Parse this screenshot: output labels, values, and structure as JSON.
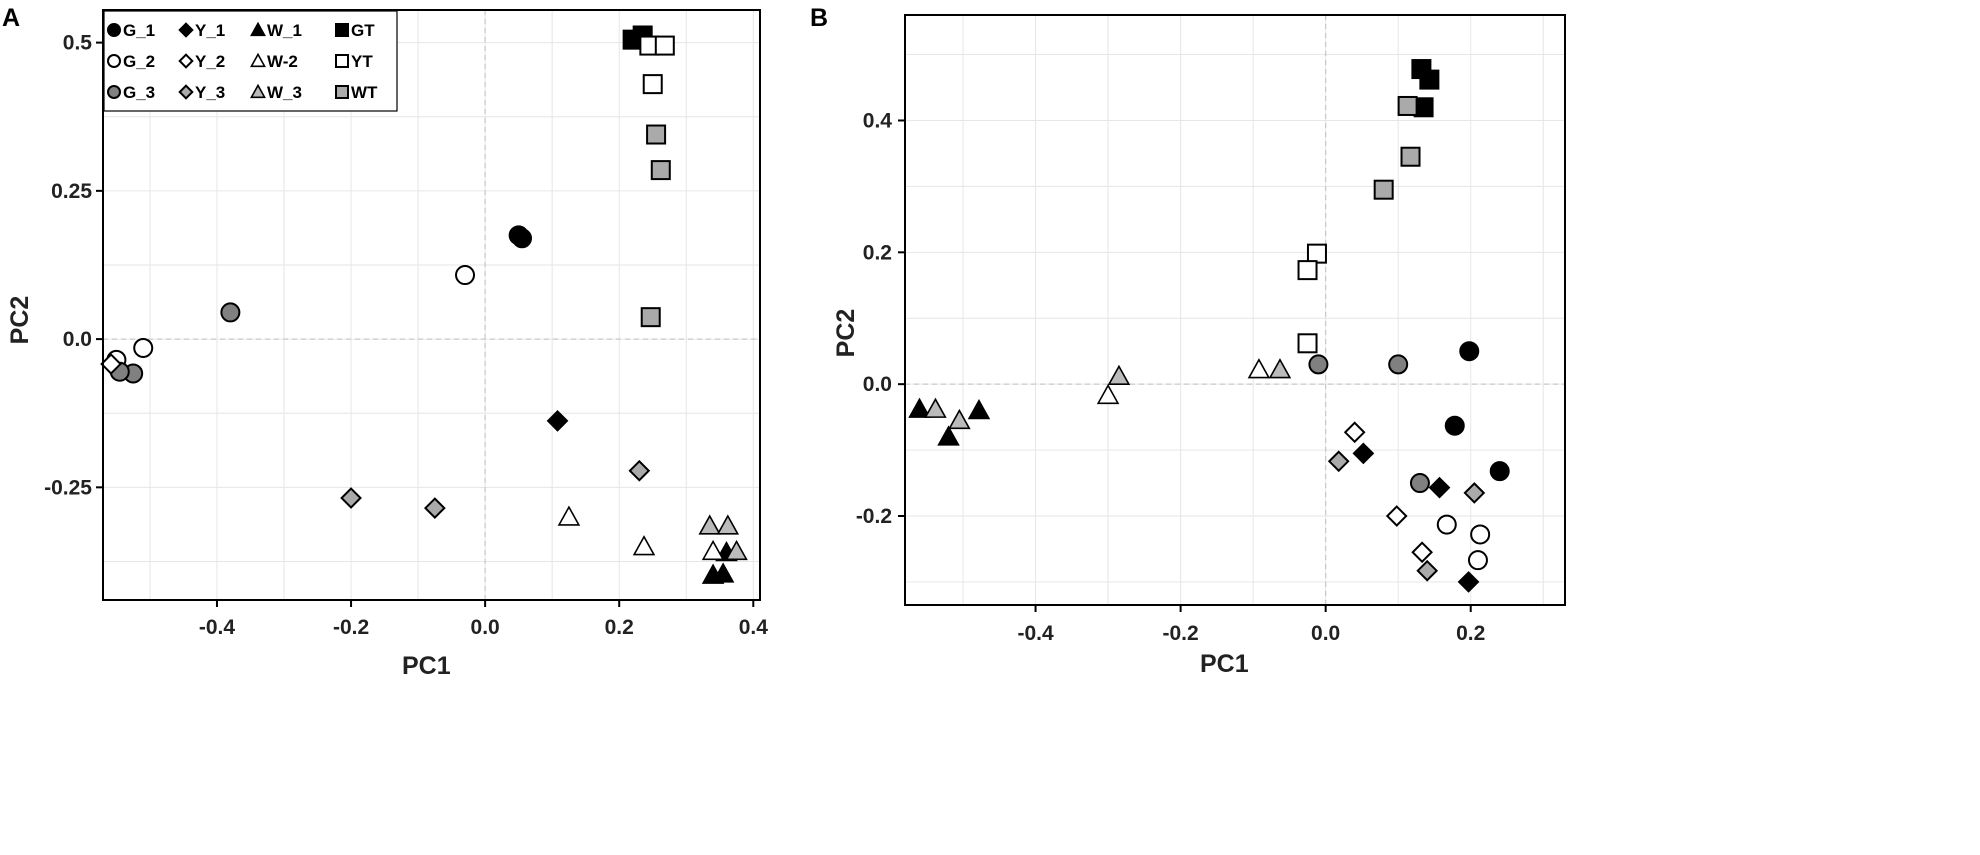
{
  "panels": [
    {
      "letter": "A",
      "ylabel_color": "#b5451b"
    },
    {
      "letter": "B",
      "ylabel_color": "#222222"
    }
  ],
  "legend": {
    "items": [
      {
        "label": "G_1",
        "group": "G_1"
      },
      {
        "label": "Y_1",
        "group": "Y_1"
      },
      {
        "label": "W_1",
        "group": "W_1"
      },
      {
        "label": "GT",
        "group": "GT"
      },
      {
        "label": "G_2",
        "group": "G_2"
      },
      {
        "label": "Y_2",
        "group": "Y_2"
      },
      {
        "label": "W-2",
        "group": "W_2"
      },
      {
        "label": "YT",
        "group": "YT"
      },
      {
        "label": "G_3",
        "group": "G_3"
      },
      {
        "label": "Y_3",
        "group": "Y_3"
      },
      {
        "label": "W_3",
        "group": "W_3"
      },
      {
        "label": "WT",
        "group": "WT"
      }
    ]
  },
  "styles": {
    "G_1": {
      "shape": "circle",
      "fill": "#000000"
    },
    "G_2": {
      "shape": "circle",
      "fill": "#ffffff"
    },
    "G_3": {
      "shape": "circle",
      "fill": "#808080"
    },
    "Y_1": {
      "shape": "diamond",
      "fill": "#000000"
    },
    "Y_2": {
      "shape": "diamond",
      "fill": "#ffffff"
    },
    "Y_3": {
      "shape": "diamond",
      "fill": "#aaaaaa"
    },
    "W_1": {
      "shape": "triangle",
      "fill": "#000000"
    },
    "W_2": {
      "shape": "triangle",
      "fill": "#ffffff"
    },
    "W_3": {
      "shape": "triangle",
      "fill": "#bbbbbb"
    },
    "GT": {
      "shape": "square",
      "fill": "#000000"
    },
    "YT": {
      "shape": "square",
      "fill": "#ffffff"
    },
    "WT": {
      "shape": "square",
      "fill": "#aaaaaa"
    }
  },
  "chart_data": [
    {
      "type": "scatter",
      "title": "",
      "xlabel": "PC1",
      "ylabel": "PC2",
      "xlim": [
        -0.57,
        0.41
      ],
      "ylim": [
        -0.44,
        0.555
      ],
      "xticks": [
        -0.4,
        -0.2,
        0.0,
        0.2,
        0.4
      ],
      "xtick_labels": [
        "-0.4",
        "-0.2",
        "0.0",
        "0.2",
        "0.4"
      ],
      "yticks": [
        0.5,
        0.25,
        0.0,
        -0.25
      ],
      "ytick_labels": [
        "0.5",
        "0.25",
        "0.0",
        "-0.25"
      ],
      "grid": true,
      "zero_lines": true,
      "legend": "top-left",
      "points": [
        {
          "group": "G_1",
          "x": 0.05,
          "y": 0.175
        },
        {
          "group": "G_1",
          "x": 0.055,
          "y": 0.17
        },
        {
          "group": "G_2",
          "x": -0.03,
          "y": 0.108
        },
        {
          "group": "G_2",
          "x": -0.51,
          "y": -0.015
        },
        {
          "group": "G_2",
          "x": -0.55,
          "y": -0.035
        },
        {
          "group": "G_3",
          "x": -0.38,
          "y": 0.045
        },
        {
          "group": "G_3",
          "x": -0.525,
          "y": -0.058
        },
        {
          "group": "G_3",
          "x": -0.545,
          "y": -0.055
        },
        {
          "group": "Y_1",
          "x": 0.108,
          "y": -0.138
        },
        {
          "group": "Y_2",
          "x": -0.558,
          "y": -0.042
        },
        {
          "group": "Y_3",
          "x": 0.23,
          "y": -0.222
        },
        {
          "group": "Y_3",
          "x": -0.2,
          "y": -0.268
        },
        {
          "group": "Y_3",
          "x": -0.075,
          "y": -0.285
        },
        {
          "group": "W_1",
          "x": 0.34,
          "y": -0.398
        },
        {
          "group": "W_1",
          "x": 0.355,
          "y": -0.396
        },
        {
          "group": "W_1",
          "x": 0.36,
          "y": -0.36
        },
        {
          "group": "W_2",
          "x": 0.125,
          "y": -0.3
        },
        {
          "group": "W_2",
          "x": 0.237,
          "y": -0.35
        },
        {
          "group": "W_2",
          "x": 0.34,
          "y": -0.358
        },
        {
          "group": "W_3",
          "x": 0.335,
          "y": -0.315
        },
        {
          "group": "W_3",
          "x": 0.362,
          "y": -0.315
        },
        {
          "group": "W_3",
          "x": 0.375,
          "y": -0.358
        },
        {
          "group": "GT",
          "x": 0.22,
          "y": 0.505
        },
        {
          "group": "GT",
          "x": 0.235,
          "y": 0.512
        },
        {
          "group": "YT",
          "x": 0.245,
          "y": 0.495
        },
        {
          "group": "YT",
          "x": 0.268,
          "y": 0.495
        },
        {
          "group": "YT",
          "x": 0.25,
          "y": 0.43
        },
        {
          "group": "WT",
          "x": 0.255,
          "y": 0.345
        },
        {
          "group": "WT",
          "x": 0.262,
          "y": 0.285
        },
        {
          "group": "WT",
          "x": 0.247,
          "y": 0.037
        }
      ]
    },
    {
      "type": "scatter",
      "title": "",
      "xlabel": "PC1",
      "ylabel": "PC2",
      "xlim": [
        -0.58,
        0.33
      ],
      "ylim": [
        -0.335,
        0.56
      ],
      "xticks": [
        -0.4,
        -0.2,
        0.0,
        0.2
      ],
      "xtick_labels": [
        "-0.4",
        "-0.2",
        "0.0",
        "0.2"
      ],
      "yticks": [
        0.4,
        0.2,
        0.0,
        -0.2
      ],
      "ytick_labels": [
        "0.4",
        "0.2",
        "0.0",
        "-0.2"
      ],
      "grid": true,
      "zero_lines": true,
      "legend": "none",
      "points": [
        {
          "group": "G_1",
          "x": 0.198,
          "y": 0.05
        },
        {
          "group": "G_1",
          "x": 0.178,
          "y": -0.063
        },
        {
          "group": "G_1",
          "x": 0.24,
          "y": -0.132
        },
        {
          "group": "G_2",
          "x": 0.167,
          "y": -0.213
        },
        {
          "group": "G_2",
          "x": 0.213,
          "y": -0.228
        },
        {
          "group": "G_2",
          "x": 0.21,
          "y": -0.267
        },
        {
          "group": "G_3",
          "x": -0.01,
          "y": 0.03
        },
        {
          "group": "G_3",
          "x": 0.1,
          "y": 0.03
        },
        {
          "group": "G_3",
          "x": 0.13,
          "y": -0.15
        },
        {
          "group": "Y_1",
          "x": 0.052,
          "y": -0.105
        },
        {
          "group": "Y_1",
          "x": 0.157,
          "y": -0.157
        },
        {
          "group": "Y_1",
          "x": 0.197,
          "y": -0.3
        },
        {
          "group": "Y_2",
          "x": 0.04,
          "y": -0.073
        },
        {
          "group": "Y_2",
          "x": 0.098,
          "y": -0.2
        },
        {
          "group": "Y_2",
          "x": 0.133,
          "y": -0.255
        },
        {
          "group": "Y_3",
          "x": 0.018,
          "y": -0.117
        },
        {
          "group": "Y_3",
          "x": 0.205,
          "y": -0.165
        },
        {
          "group": "Y_3",
          "x": 0.14,
          "y": -0.283
        },
        {
          "group": "W_1",
          "x": -0.56,
          "y": -0.038
        },
        {
          "group": "W_1",
          "x": -0.52,
          "y": -0.08
        },
        {
          "group": "W_1",
          "x": -0.478,
          "y": -0.04
        },
        {
          "group": "W_2",
          "x": -0.3,
          "y": -0.017
        },
        {
          "group": "W_2",
          "x": -0.092,
          "y": 0.022
        },
        {
          "group": "W_3",
          "x": -0.538,
          "y": -0.038
        },
        {
          "group": "W_3",
          "x": -0.505,
          "y": -0.055
        },
        {
          "group": "W_3",
          "x": -0.285,
          "y": 0.012
        },
        {
          "group": "W_3",
          "x": -0.063,
          "y": 0.022
        },
        {
          "group": "GT",
          "x": 0.132,
          "y": 0.478
        },
        {
          "group": "GT",
          "x": 0.143,
          "y": 0.462
        },
        {
          "group": "GT",
          "x": 0.135,
          "y": 0.42
        },
        {
          "group": "YT",
          "x": -0.012,
          "y": 0.198
        },
        {
          "group": "YT",
          "x": -0.025,
          "y": 0.173
        },
        {
          "group": "YT",
          "x": -0.025,
          "y": 0.062
        },
        {
          "group": "WT",
          "x": 0.113,
          "y": 0.422
        },
        {
          "group": "WT",
          "x": 0.117,
          "y": 0.345
        },
        {
          "group": "WT",
          "x": 0.08,
          "y": 0.295
        }
      ]
    }
  ]
}
